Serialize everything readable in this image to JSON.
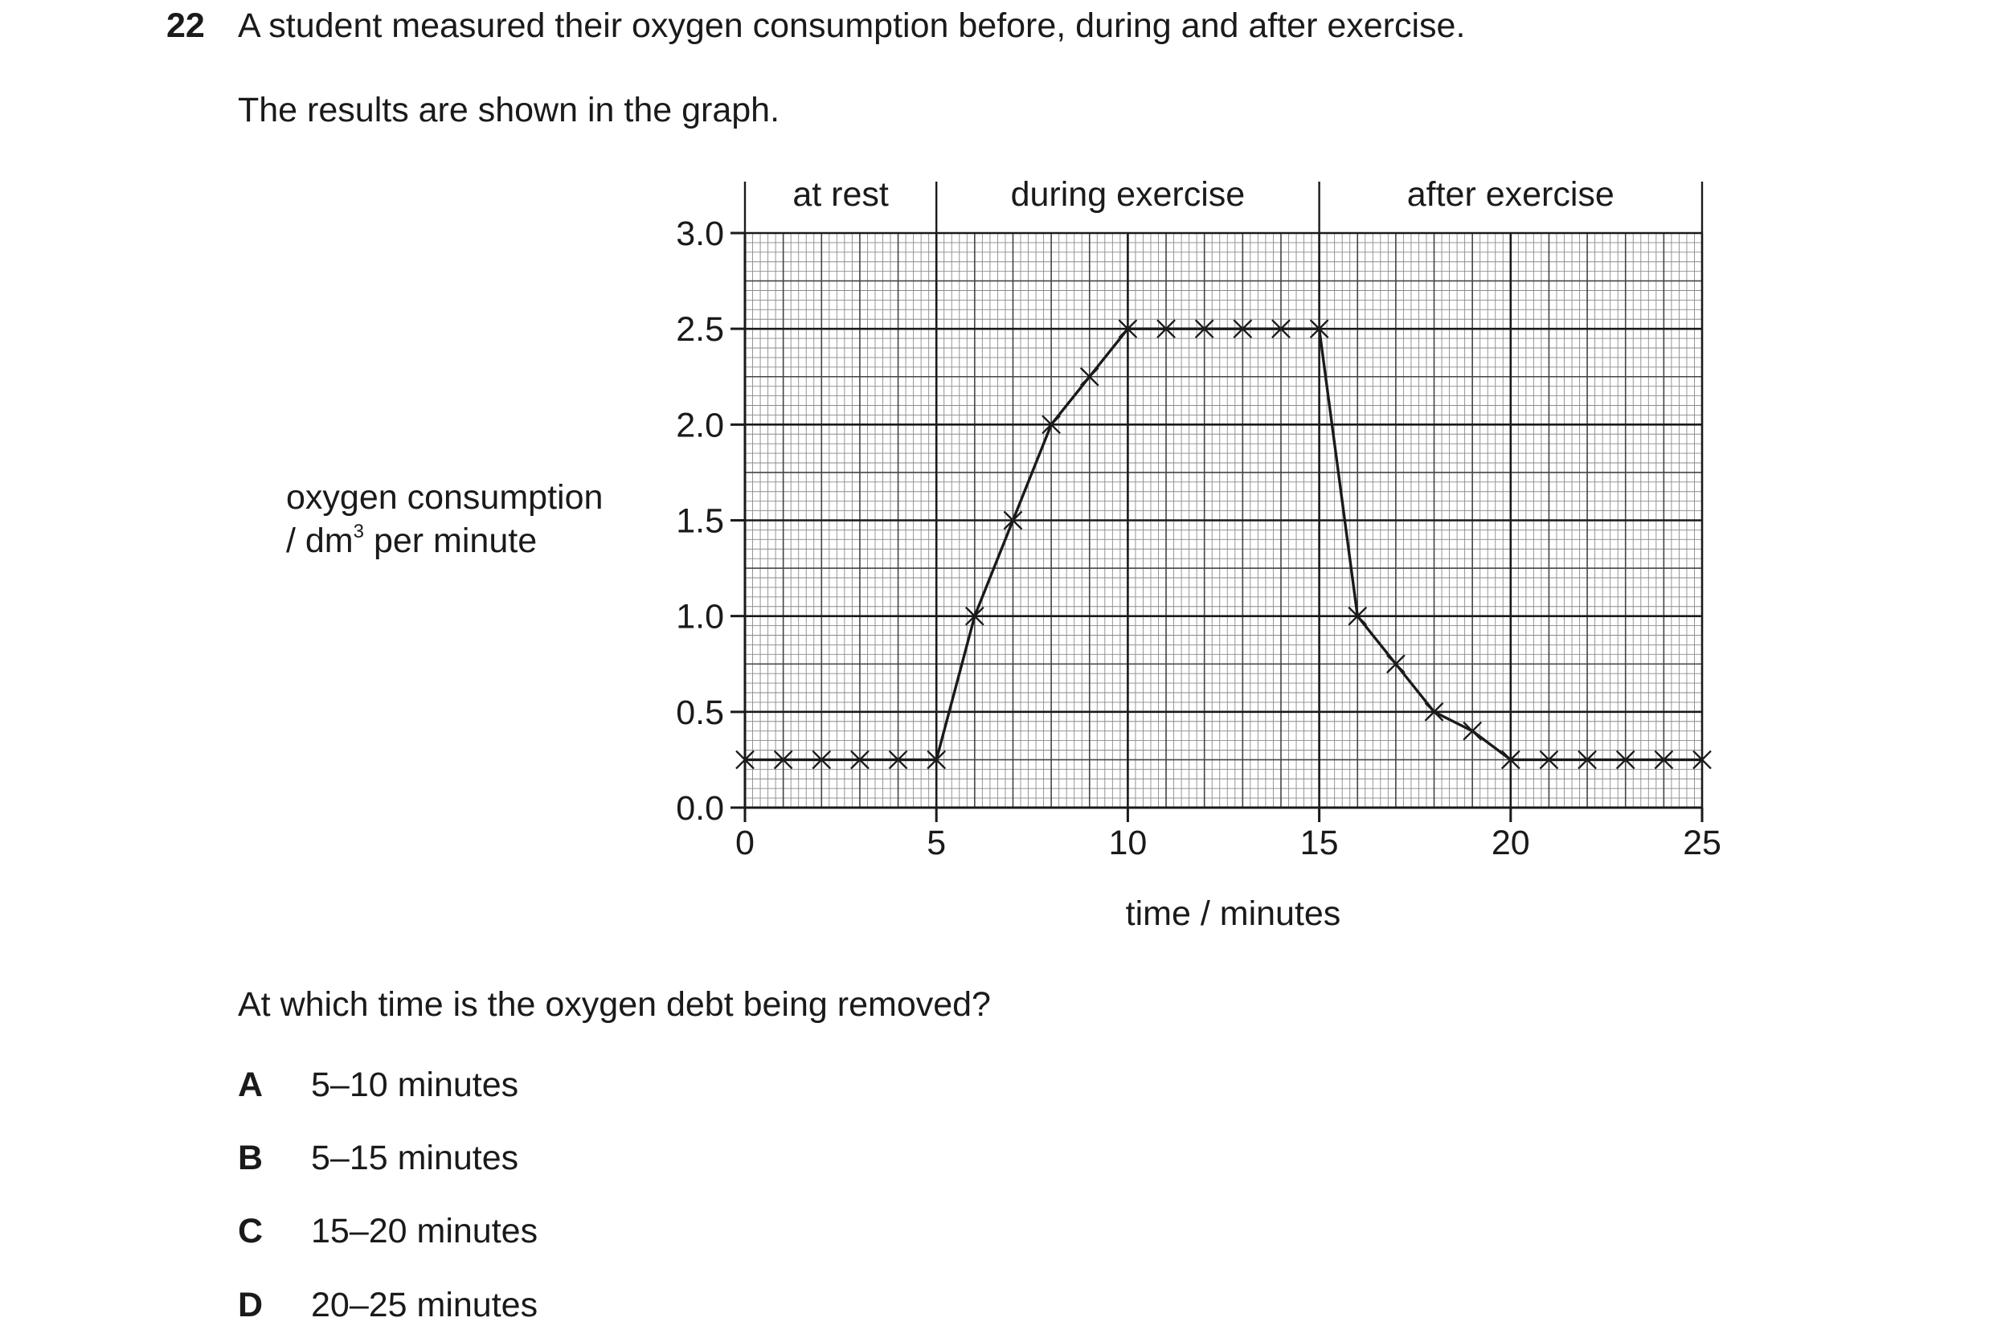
{
  "question": {
    "number": "22",
    "stem": "A student measured their oxygen consumption before, during and after exercise.",
    "intro": "The results are shown in the graph.",
    "ask": "At which time is the oxygen debt being removed?",
    "options": [
      {
        "letter": "A",
        "text": "5–10 minutes"
      },
      {
        "letter": "B",
        "text": "5–15 minutes"
      },
      {
        "letter": "C",
        "text": "15–20 minutes"
      },
      {
        "letter": "D",
        "text": "20–25 minutes"
      }
    ]
  },
  "chart_data": {
    "type": "line",
    "title": "",
    "ylabel_line1": "oxygen consumption",
    "ylabel_line2_prefix": "/ dm",
    "ylabel_line2_sup": "3",
    "ylabel_line2_suffix": " per minute",
    "xlabel": "time / minutes",
    "xlim": [
      0,
      25
    ],
    "ylim": [
      0,
      3.0
    ],
    "x_ticks": [
      0,
      5,
      10,
      15,
      20,
      25
    ],
    "y_ticks": [
      0.0,
      0.5,
      1.0,
      1.5,
      2.0,
      2.5,
      3.0
    ],
    "y_tick_labels": [
      "0.0",
      "0.5",
      "1.0",
      "1.5",
      "2.0",
      "2.5",
      "3.0"
    ],
    "grid": true,
    "phases": [
      {
        "label": "at rest",
        "start": 0,
        "end": 5
      },
      {
        "label": "during exercise",
        "start": 5,
        "end": 15
      },
      {
        "label": "after exercise",
        "start": 15,
        "end": 25
      }
    ],
    "marker": "cross",
    "series": [
      {
        "x": [
          0,
          1,
          2,
          3,
          4,
          5,
          6,
          7,
          8,
          9,
          10,
          11,
          12,
          13,
          14,
          15,
          16,
          17,
          18,
          19,
          20,
          21,
          22,
          23,
          24,
          25
        ],
        "y": [
          0.25,
          0.25,
          0.25,
          0.25,
          0.25,
          0.25,
          1.0,
          1.5,
          2.0,
          2.25,
          2.5,
          2.5,
          2.5,
          2.5,
          2.5,
          2.5,
          1.0,
          0.75,
          0.5,
          0.4,
          0.25,
          0.25,
          0.25,
          0.25,
          0.25,
          0.25
        ]
      }
    ]
  }
}
